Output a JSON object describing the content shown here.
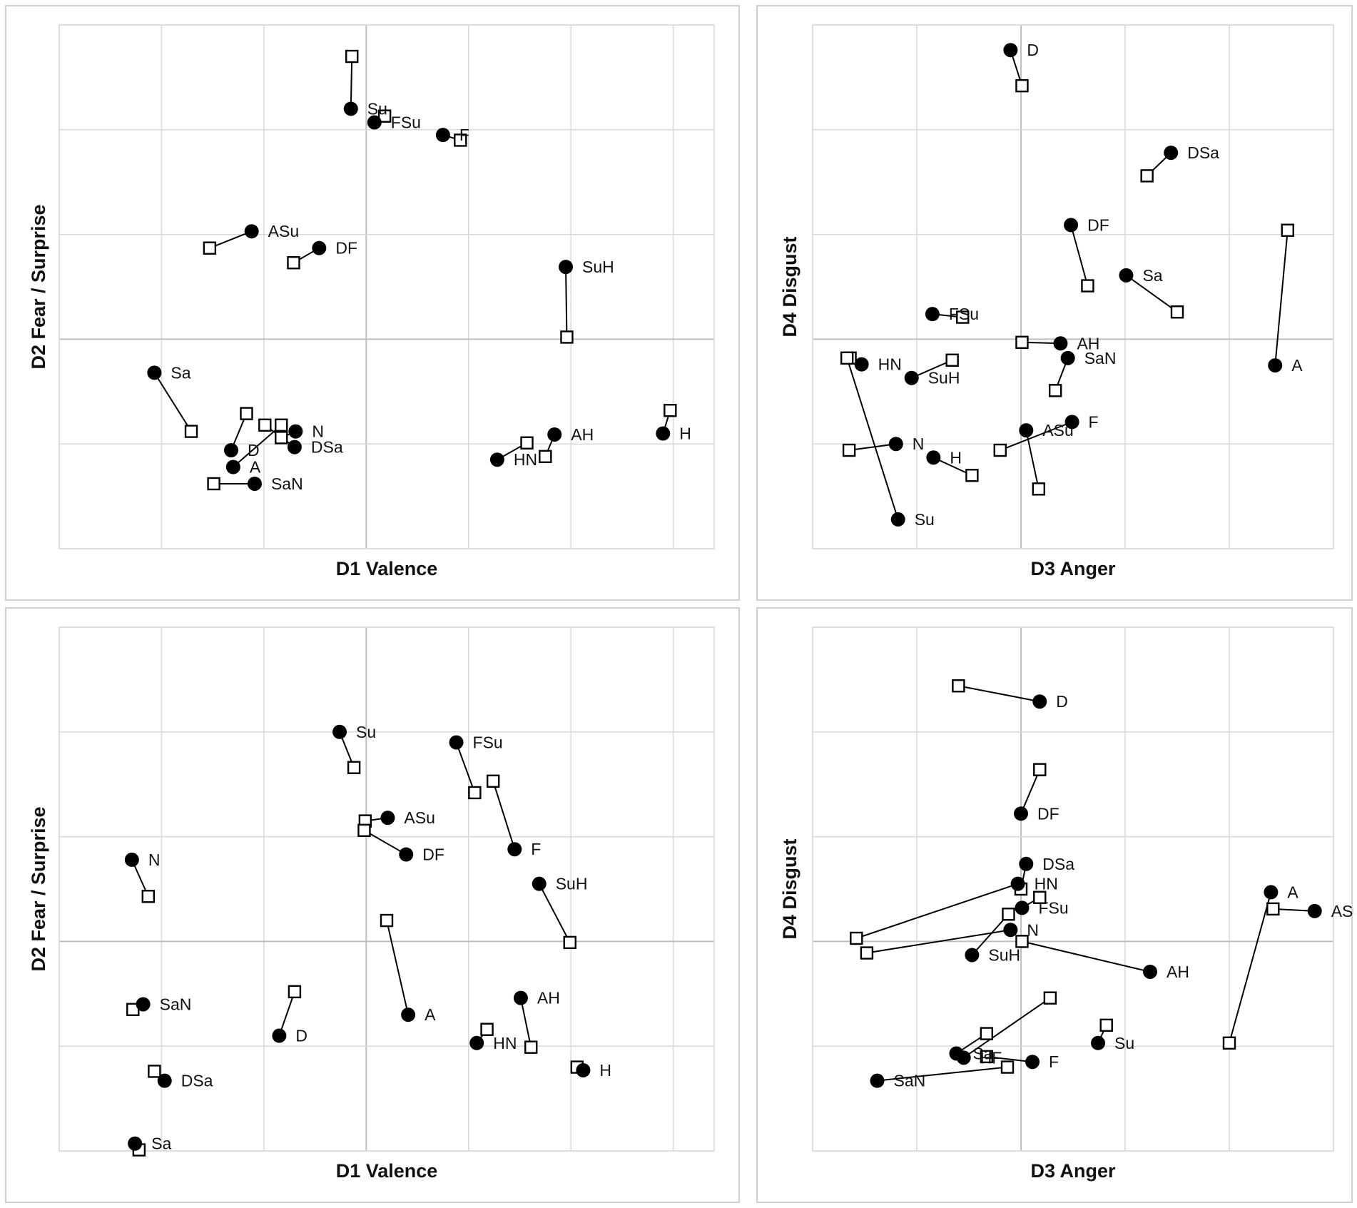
{
  "chart_data": [
    {
      "type": "scatter",
      "xlabel": "D1 Valence",
      "ylabel": "D2 Fear / Surprise",
      "xlim": [
        -3,
        3.4
      ],
      "ylim": [
        -2,
        3
      ],
      "grid": true,
      "legend": "none",
      "series": [
        {
          "marker": "circle",
          "points": [
            {
              "label": "Su",
              "x": -0.15,
              "y": 2.2
            },
            {
              "label": "FSu",
              "x": 0.08,
              "y": 2.07
            },
            {
              "label": "F",
              "x": 0.75,
              "y": 1.95
            },
            {
              "label": "ASu",
              "x": -1.12,
              "y": 1.03
            },
            {
              "label": "DF",
              "x": -0.46,
              "y": 0.87
            },
            {
              "label": "SuH",
              "x": 1.95,
              "y": 0.69
            },
            {
              "label": "Sa",
              "x": -2.07,
              "y": -0.32
            },
            {
              "label": "N",
              "x": -0.69,
              "y": -0.88
            },
            {
              "label": "DSa",
              "x": -0.7,
              "y": -1.03
            },
            {
              "label": "D",
              "x": -1.32,
              "y": -1.06
            },
            {
              "label": "A",
              "x": -1.3,
              "y": -1.22
            },
            {
              "label": "SaN",
              "x": -1.09,
              "y": -1.38
            },
            {
              "label": "AH",
              "x": 1.84,
              "y": -0.91
            },
            {
              "label": "HN",
              "x": 1.28,
              "y": -1.15
            },
            {
              "label": "H",
              "x": 2.9,
              "y": -0.9
            }
          ]
        },
        {
          "marker": "square",
          "points": [
            {
              "label": "Su",
              "x": -0.14,
              "y": 2.7
            },
            {
              "label": "FSu",
              "x": 0.18,
              "y": 2.13
            },
            {
              "label": "F",
              "x": 0.92,
              "y": 1.9
            },
            {
              "label": "ASu",
              "x": -1.53,
              "y": 0.87
            },
            {
              "label": "DF",
              "x": -0.71,
              "y": 0.73
            },
            {
              "label": "SuH",
              "x": 1.96,
              "y": 0.02
            },
            {
              "label": "Sa",
              "x": -1.71,
              "y": -0.88
            },
            {
              "label": "N",
              "x": -0.83,
              "y": -0.94
            },
            {
              "label": "DSa",
              "x": -0.99,
              "y": -0.82
            },
            {
              "label": "D",
              "x": -1.17,
              "y": -0.71
            },
            {
              "label": "A",
              "x": -0.83,
              "y": -0.82
            },
            {
              "label": "SaN",
              "x": -1.49,
              "y": -1.38
            },
            {
              "label": "AH",
              "x": 1.75,
              "y": -1.12
            },
            {
              "label": "HN",
              "x": 1.57,
              "y": -0.99
            },
            {
              "label": "H",
              "x": 2.97,
              "y": -0.68
            }
          ]
        }
      ]
    },
    {
      "type": "scatter",
      "xlabel": "D3 Anger",
      "ylabel": "D4 Disgust",
      "xlim": [
        -2,
        3
      ],
      "ylim": [
        -2,
        3
      ],
      "grid": true,
      "legend": "none",
      "series": [
        {
          "marker": "circle",
          "points": [
            {
              "label": "D",
              "x": -0.1,
              "y": 2.76
            },
            {
              "label": "DSa",
              "x": 1.44,
              "y": 1.78
            },
            {
              "label": "DF",
              "x": 0.48,
              "y": 1.09
            },
            {
              "label": "Sa",
              "x": 1.01,
              "y": 0.61
            },
            {
              "label": "A",
              "x": 2.44,
              "y": -0.25
            },
            {
              "label": "FSu",
              "x": -0.85,
              "y": 0.24
            },
            {
              "label": "AH",
              "x": 0.38,
              "y": -0.04
            },
            {
              "label": "SaN",
              "x": 0.45,
              "y": -0.18
            },
            {
              "label": "HN",
              "x": -1.53,
              "y": -0.24
            },
            {
              "label": "SuH",
              "x": -1.05,
              "y": -0.37
            },
            {
              "label": "F",
              "x": 0.49,
              "y": -0.79
            },
            {
              "label": "ASu",
              "x": 0.05,
              "y": -0.87
            },
            {
              "label": "N",
              "x": -1.2,
              "y": -1.0
            },
            {
              "label": "H",
              "x": -0.84,
              "y": -1.13
            },
            {
              "label": "Su",
              "x": -1.18,
              "y": -1.72
            }
          ]
        },
        {
          "marker": "square",
          "points": [
            {
              "label": "D",
              "x": 0.01,
              "y": 2.42
            },
            {
              "label": "DSa",
              "x": 1.21,
              "y": 1.56
            },
            {
              "label": "DF",
              "x": 0.64,
              "y": 0.51
            },
            {
              "label": "Sa",
              "x": 1.5,
              "y": 0.26
            },
            {
              "label": "A",
              "x": 2.56,
              "y": 1.04
            },
            {
              "label": "FSu",
              "x": -0.56,
              "y": 0.21
            },
            {
              "label": "AH",
              "x": 0.01,
              "y": -0.03
            },
            {
              "label": "SaN",
              "x": 0.33,
              "y": -0.49
            },
            {
              "label": "HN",
              "x": -1.64,
              "y": -0.18
            },
            {
              "label": "SuH",
              "x": -0.66,
              "y": -0.2
            },
            {
              "label": "F",
              "x": -0.2,
              "y": -1.06
            },
            {
              "label": "ASu",
              "x": 0.17,
              "y": -1.43
            },
            {
              "label": "N",
              "x": -1.65,
              "y": -1.06
            },
            {
              "label": "H",
              "x": -0.47,
              "y": -1.3
            },
            {
              "label": "Su",
              "x": -1.67,
              "y": -0.18
            }
          ]
        }
      ]
    },
    {
      "type": "scatter",
      "xlabel": "D1 Valence",
      "ylabel": "D2 Fear / Surprise",
      "xlim": [
        -3,
        3.4
      ],
      "ylim": [
        -2,
        3
      ],
      "grid": true,
      "legend": "none",
      "series": [
        {
          "marker": "circle",
          "points": [
            {
              "label": "Su",
              "x": -0.26,
              "y": 2.0
            },
            {
              "label": "FSu",
              "x": 0.88,
              "y": 1.9
            },
            {
              "label": "ASu",
              "x": 0.21,
              "y": 1.18
            },
            {
              "label": "DF",
              "x": 0.39,
              "y": 0.83
            },
            {
              "label": "F",
              "x": 1.45,
              "y": 0.88
            },
            {
              "label": "SuH",
              "x": 1.69,
              "y": 0.55
            },
            {
              "label": "N",
              "x": -2.29,
              "y": 0.78
            },
            {
              "label": "A",
              "x": 0.41,
              "y": -0.7
            },
            {
              "label": "D",
              "x": -0.85,
              "y": -0.9
            },
            {
              "label": "SaN",
              "x": -2.18,
              "y": -0.6
            },
            {
              "label": "AH",
              "x": 1.51,
              "y": -0.54
            },
            {
              "label": "HN",
              "x": 1.08,
              "y": -0.97
            },
            {
              "label": "DSa",
              "x": -1.97,
              "y": -1.33
            },
            {
              "label": "H",
              "x": 2.12,
              "y": -1.23
            },
            {
              "label": "Sa",
              "x": -2.26,
              "y": -1.93
            }
          ]
        },
        {
          "marker": "square",
          "points": [
            {
              "label": "Su",
              "x": -0.12,
              "y": 1.66
            },
            {
              "label": "FSu",
              "x": 1.06,
              "y": 1.42
            },
            {
              "label": "ASu",
              "x": -0.01,
              "y": 1.15
            },
            {
              "label": "DF",
              "x": -0.02,
              "y": 1.06
            },
            {
              "label": "F",
              "x": 1.24,
              "y": 1.53
            },
            {
              "label": "SuH",
              "x": 1.99,
              "y": -0.01
            },
            {
              "label": "N",
              "x": -2.13,
              "y": 0.43
            },
            {
              "label": "A",
              "x": 0.2,
              "y": 0.2
            },
            {
              "label": "D",
              "x": -0.7,
              "y": -0.48
            },
            {
              "label": "SaN",
              "x": -2.28,
              "y": -0.65
            },
            {
              "label": "AH",
              "x": 1.61,
              "y": -1.01
            },
            {
              "label": "HN",
              "x": 1.18,
              "y": -0.84
            },
            {
              "label": "DSa",
              "x": -2.07,
              "y": -1.24
            },
            {
              "label": "H",
              "x": 2.06,
              "y": -1.2
            },
            {
              "label": "Sa",
              "x": -2.22,
              "y": -1.99
            }
          ]
        }
      ]
    },
    {
      "type": "scatter",
      "xlabel": "D3 Anger",
      "ylabel": "D4 Disgust",
      "xlim": [
        -2,
        3
      ],
      "ylim": [
        -2,
        3
      ],
      "grid": true,
      "legend": "none",
      "series": [
        {
          "marker": "circle",
          "points": [
            {
              "label": "D",
              "x": 0.18,
              "y": 2.29
            },
            {
              "label": "DF",
              "x": 0.0,
              "y": 1.22
            },
            {
              "label": "DSa",
              "x": 0.05,
              "y": 0.74
            },
            {
              "label": "HN",
              "x": -0.03,
              "y": 0.55
            },
            {
              "label": "FSu",
              "x": 0.01,
              "y": 0.32
            },
            {
              "label": "A",
              "x": 2.4,
              "y": 0.47
            },
            {
              "label": "ASu",
              "x": 2.82,
              "y": 0.29
            },
            {
              "label": "N",
              "x": -0.1,
              "y": 0.11
            },
            {
              "label": "SuH",
              "x": -0.47,
              "y": -0.13
            },
            {
              "label": "AH",
              "x": 1.24,
              "y": -0.29
            },
            {
              "label": "Su",
              "x": 0.74,
              "y": -0.97
            },
            {
              "label": "Sa",
              "x": -0.62,
              "y": -1.07
            },
            {
              "label": "F",
              "x": 0.11,
              "y": -1.15
            },
            {
              "label": "SaN",
              "x": -1.38,
              "y": -1.33
            },
            {
              "label": "HF",
              "x": -0.55,
              "y": -1.11
            }
          ]
        },
        {
          "marker": "square",
          "points": [
            {
              "label": "D",
              "x": -0.6,
              "y": 2.44
            },
            {
              "label": "DF",
              "x": 0.18,
              "y": 1.64
            },
            {
              "label": "DSa",
              "x": 0.0,
              "y": 0.5
            },
            {
              "label": "HN",
              "x": -1.58,
              "y": 0.03
            },
            {
              "label": "FSu",
              "x": 0.18,
              "y": 0.42
            },
            {
              "label": "A",
              "x": 2.0,
              "y": -0.97
            },
            {
              "label": "ASu",
              "x": 2.42,
              "y": 0.31
            },
            {
              "label": "N",
              "x": -1.48,
              "y": -0.11
            },
            {
              "label": "SuH",
              "x": -0.12,
              "y": 0.26
            },
            {
              "label": "AH",
              "x": 0.01,
              "y": 0.0
            },
            {
              "label": "Su",
              "x": 0.82,
              "y": -0.8
            },
            {
              "label": "Sa",
              "x": -0.33,
              "y": -0.88
            },
            {
              "label": "F",
              "x": -0.33,
              "y": -1.1
            },
            {
              "label": "SaN",
              "x": -0.13,
              "y": -1.2
            },
            {
              "label": "HF",
              "x": 0.28,
              "y": -0.54
            }
          ]
        }
      ]
    }
  ]
}
